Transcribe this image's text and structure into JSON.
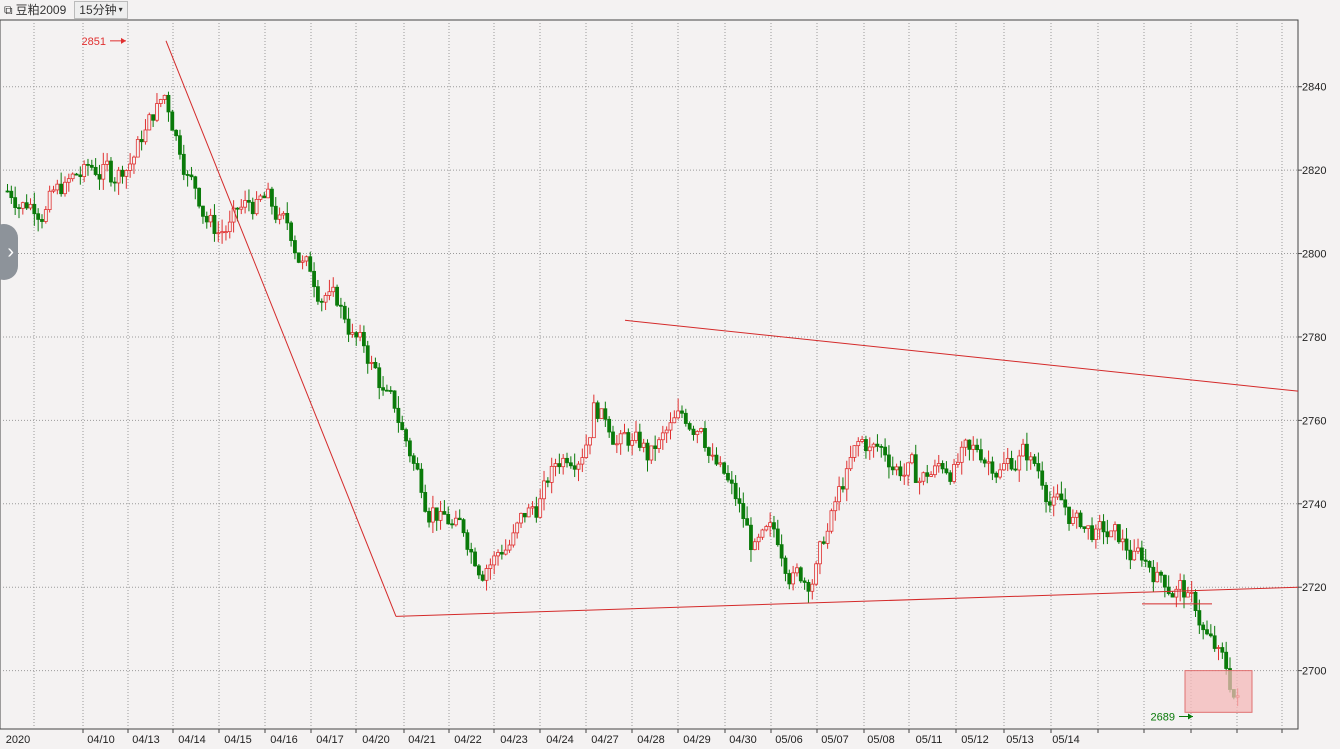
{
  "header": {
    "symbol": "豆粕2009",
    "period": "15分钟",
    "symbol_icon": "window-switch-icon",
    "dropdown_icon": "chevron-down-icon"
  },
  "colors": {
    "up": "#e03030",
    "down": "#0a7a0a",
    "trendline": "#d42a2a",
    "grid": "#9a9a9a",
    "highlight": "#f4b8b8"
  },
  "annotations": {
    "high_label": "2851",
    "low_label": "2689"
  },
  "chart_data": {
    "type": "candlestick",
    "ylim": [
      2686,
      2856
    ],
    "y_ticks": [
      2700,
      2720,
      2740,
      2760,
      2780,
      2800,
      2820,
      2840
    ],
    "x_labels": [
      "2020",
      "04/10",
      "04/13",
      "04/14",
      "04/15",
      "04/16",
      "04/17",
      "04/20",
      "04/21",
      "04/22",
      "04/23",
      "04/24",
      "04/27",
      "04/28",
      "04/29",
      "04/30",
      "05/06",
      "05/07",
      "05/08",
      "05/11",
      "05/12",
      "05/13",
      "05/14"
    ],
    "session_close_prices": [
      2815,
      2820,
      2838,
      2805,
      2812,
      2790,
      2770,
      2738,
      2725,
      2740,
      2762,
      2752,
      2760,
      2728,
      2722,
      2755,
      2748,
      2752,
      2752,
      2735,
      2728,
      2720,
      2692
    ],
    "high": {
      "value": 2851,
      "label": "2851"
    },
    "low": {
      "value": 2689,
      "label": "2689"
    },
    "highlight_box": {
      "y_range": [
        2690,
        2700
      ]
    },
    "trendlines": [
      {
        "from": {
          "session": "04/13",
          "price": 2851
        },
        "to": {
          "session": "04/20",
          "price": 2713
        }
      },
      {
        "from": {
          "session": "04/20",
          "price": 2713
        },
        "to": {
          "session": "end",
          "price": 2720
        }
      },
      {
        "from": {
          "session": "04/27",
          "price": 2784
        },
        "to": {
          "session": "end",
          "price": 2767
        }
      }
    ]
  }
}
